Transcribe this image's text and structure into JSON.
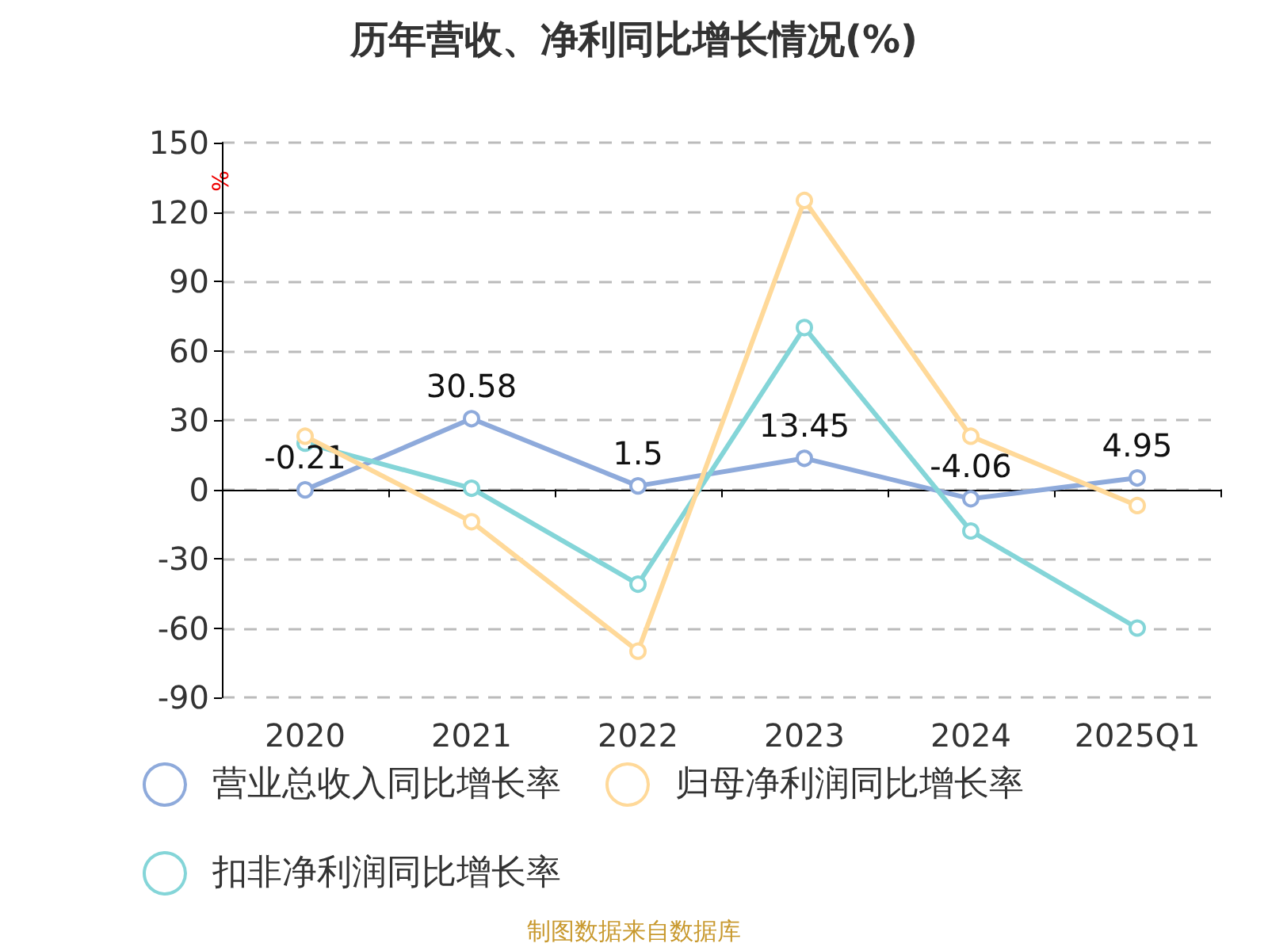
{
  "chart_data": {
    "type": "line",
    "title": "历年营收、净利同比增长情况(%)",
    "ylabel": "%",
    "categories": [
      "2020",
      "2021",
      "2022",
      "2023",
      "2024",
      "2025Q1"
    ],
    "series": [
      {
        "name": "营业总收入同比增长率",
        "color": "#8eaadb",
        "values": [
          -0.21,
          30.58,
          1.5,
          13.45,
          -4.06,
          4.95
        ],
        "value_labels": [
          "-0.21",
          "30.58",
          "1.5",
          "13.45",
          "-4.06",
          "4.95"
        ]
      },
      {
        "name": "归母净利润同比增长率",
        "color": "#ffd999",
        "values": [
          23,
          -14,
          -70,
          125,
          23,
          -7
        ]
      },
      {
        "name": "扣非净利润同比增长率",
        "color": "#84d5d8",
        "values": [
          20,
          0.5,
          -41,
          70,
          -18,
          -60
        ]
      }
    ],
    "ylim": [
      -90,
      150
    ],
    "yticks": [
      -90,
      -60,
      -30,
      0,
      30,
      60,
      90,
      120,
      150
    ],
    "grid": "y",
    "legend": "bottom",
    "marker": "circle",
    "line_style": "solid",
    "annotations": [
      "制图数据来自数据库"
    ]
  }
}
